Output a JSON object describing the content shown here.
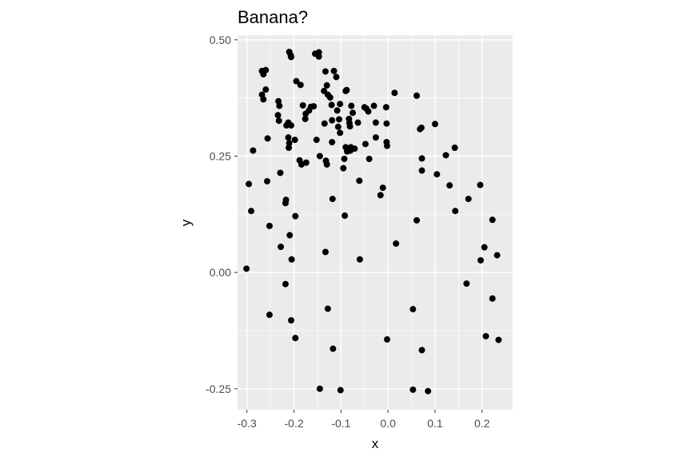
{
  "chart_data": {
    "type": "scatter",
    "title": "Banana?",
    "xlabel": "x",
    "ylabel": "y",
    "xlim": [
      -0.32,
      0.265
    ],
    "ylim": [
      -0.295,
      0.51
    ],
    "xticks": [
      -0.3,
      -0.2,
      -0.1,
      0.0,
      0.1,
      0.2
    ],
    "xtick_labels": [
      "-0.3",
      "-0.2",
      "-0.1",
      "0.0",
      "0.1",
      "0.2"
    ],
    "yticks": [
      -0.25,
      0.0,
      0.25,
      0.5
    ],
    "ytick_labels": [
      "-0.25",
      "0.00",
      "0.25",
      "0.50"
    ],
    "grid": true,
    "legend": "none",
    "colors": {
      "panel": "#ebebeb",
      "grid": "#ffffff",
      "point": "#000000",
      "tick": "#333333"
    },
    "points": [
      [
        -0.301,
        0.008
      ],
      [
        -0.296,
        0.19
      ],
      [
        -0.291,
        0.132
      ],
      [
        -0.287,
        0.262
      ],
      [
        -0.268,
        0.433
      ],
      [
        -0.265,
        0.426
      ],
      [
        -0.26,
        0.435
      ],
      [
        -0.268,
        0.382
      ],
      [
        -0.265,
        0.372
      ],
      [
        -0.26,
        0.393
      ],
      [
        -0.256,
        0.288
      ],
      [
        -0.257,
        0.196
      ],
      [
        -0.252,
        0.1
      ],
      [
        -0.252,
        -0.091
      ],
      [
        -0.233,
        0.368
      ],
      [
        -0.231,
        0.358
      ],
      [
        -0.234,
        0.338
      ],
      [
        -0.232,
        0.326
      ],
      [
        -0.229,
        0.214
      ],
      [
        -0.228,
        0.055
      ],
      [
        -0.218,
        0.149
      ],
      [
        -0.217,
        0.156
      ],
      [
        -0.218,
        -0.025
      ],
      [
        -0.216,
        0.316
      ],
      [
        -0.212,
        0.322
      ],
      [
        -0.212,
        0.29
      ],
      [
        -0.21,
        0.278
      ],
      [
        -0.211,
        0.268
      ],
      [
        -0.209,
        0.08
      ],
      [
        -0.21,
        0.474
      ],
      [
        -0.207,
        0.467
      ],
      [
        -0.206,
        0.463
      ],
      [
        -0.206,
        0.316
      ],
      [
        -0.205,
        0.028
      ],
      [
        -0.206,
        -0.103
      ],
      [
        -0.198,
        0.285
      ],
      [
        -0.197,
        0.121
      ],
      [
        -0.197,
        -0.141
      ],
      [
        -0.195,
        0.411
      ],
      [
        -0.186,
        0.403
      ],
      [
        -0.188,
        0.241
      ],
      [
        -0.184,
        0.232
      ],
      [
        -0.181,
        0.359
      ],
      [
        -0.176,
        0.33
      ],
      [
        -0.175,
        0.341
      ],
      [
        -0.174,
        0.236
      ],
      [
        -0.168,
        0.348
      ],
      [
        -0.164,
        0.356
      ],
      [
        -0.158,
        0.357
      ],
      [
        -0.155,
        0.47
      ],
      [
        -0.152,
        0.285
      ],
      [
        -0.147,
        0.473
      ],
      [
        -0.147,
        0.464
      ],
      [
        -0.145,
        0.25
      ],
      [
        -0.145,
        -0.25
      ],
      [
        -0.136,
        0.39
      ],
      [
        -0.135,
        0.32
      ],
      [
        -0.133,
        0.432
      ],
      [
        -0.133,
        0.044
      ],
      [
        -0.132,
        0.24
      ],
      [
        -0.13,
        0.232
      ],
      [
        -0.128,
        -0.078
      ],
      [
        -0.13,
        0.402
      ],
      [
        -0.128,
        0.382
      ],
      [
        -0.123,
        0.376
      ],
      [
        -0.12,
        0.36
      ],
      [
        -0.119,
        0.327
      ],
      [
        -0.119,
        0.28
      ],
      [
        -0.118,
        0.158
      ],
      [
        -0.117,
        -0.164
      ],
      [
        -0.115,
        0.433
      ],
      [
        -0.11,
        0.42
      ],
      [
        -0.108,
        0.348
      ],
      [
        -0.106,
        0.313
      ],
      [
        -0.104,
        0.329
      ],
      [
        -0.102,
        0.362
      ],
      [
        -0.102,
        0.3
      ],
      [
        -0.101,
        -0.253
      ],
      [
        -0.095,
        0.224
      ],
      [
        -0.093,
        0.244
      ],
      [
        -0.092,
        0.122
      ],
      [
        -0.09,
        0.39
      ],
      [
        -0.09,
        0.269
      ],
      [
        -0.088,
        0.392
      ],
      [
        -0.087,
        0.26
      ],
      [
        -0.083,
        0.33
      ],
      [
        -0.082,
        0.321
      ],
      [
        -0.081,
        0.314
      ],
      [
        -0.08,
        0.262
      ],
      [
        -0.079,
        0.269
      ],
      [
        -0.078,
        0.358
      ],
      [
        -0.075,
        0.343
      ],
      [
        -0.071,
        0.266
      ],
      [
        -0.064,
        0.322
      ],
      [
        -0.061,
        0.197
      ],
      [
        -0.06,
        0.028
      ],
      [
        -0.05,
        0.355
      ],
      [
        -0.048,
        0.276
      ],
      [
        -0.046,
        0.352
      ],
      [
        -0.042,
        0.346
      ],
      [
        -0.04,
        0.244
      ],
      [
        -0.03,
        0.358
      ],
      [
        -0.026,
        0.322
      ],
      [
        -0.026,
        0.29
      ],
      [
        -0.016,
        0.166
      ],
      [
        -0.011,
        0.182
      ],
      [
        -0.004,
        0.355
      ],
      [
        -0.003,
        0.32
      ],
      [
        -0.003,
        0.28
      ],
      [
        -0.002,
        0.272
      ],
      [
        -0.002,
        -0.144
      ],
      [
        0.014,
        0.386
      ],
      [
        0.017,
        0.062
      ],
      [
        0.053,
        -0.079
      ],
      [
        0.053,
        -0.252
      ],
      [
        0.061,
        0.38
      ],
      [
        0.061,
        0.112
      ],
      [
        0.068,
        0.308
      ],
      [
        0.071,
        0.311
      ],
      [
        0.072,
        0.219
      ],
      [
        0.072,
        0.245
      ],
      [
        0.072,
        -0.167
      ],
      [
        0.085,
        -0.255
      ],
      [
        0.1,
        0.319
      ],
      [
        0.104,
        0.211
      ],
      [
        0.123,
        0.252
      ],
      [
        0.131,
        0.187
      ],
      [
        0.142,
        0.268
      ],
      [
        0.143,
        0.132
      ],
      [
        0.167,
        -0.024
      ],
      [
        0.171,
        0.158
      ],
      [
        0.196,
        0.188
      ],
      [
        0.197,
        0.026
      ],
      [
        0.205,
        0.054
      ],
      [
        0.208,
        -0.137
      ],
      [
        0.222,
        0.113
      ],
      [
        0.222,
        -0.056
      ],
      [
        0.232,
        0.037
      ],
      [
        0.235,
        -0.145
      ]
    ]
  }
}
